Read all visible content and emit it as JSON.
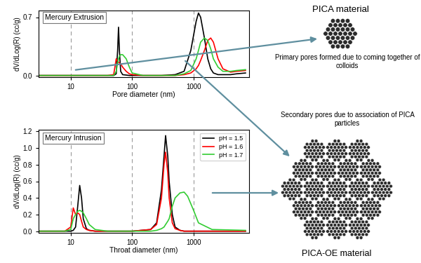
{
  "chart_data": [
    {
      "type": "line",
      "title": "Mercury Extrusion",
      "x_label": "Pore diameter (nm)",
      "y_label": "dV/dLog(R) (cc/g)",
      "log": "x",
      "grid": "x",
      "xlim": [
        3,
        8000
      ],
      "xticks": [
        10,
        100,
        1000
      ],
      "ylim": [
        -0.02,
        0.78
      ],
      "yticks": [
        {
          "value": 0,
          "label": "0.0"
        },
        0.7
      ],
      "x": [
        3,
        20,
        40,
        50,
        55,
        58,
        60,
        62,
        65,
        70,
        80,
        90,
        100,
        150,
        300,
        500,
        700,
        900,
        1100,
        1200,
        1300,
        1500,
        1700,
        1900,
        2100,
        2500,
        3000,
        4000,
        5000,
        7000
      ],
      "series": [
        {
          "name": "pH = 1.5",
          "color": "#000000",
          "values": [
            0,
            0,
            0,
            0,
            0.02,
            0.3,
            0.58,
            0.3,
            0.05,
            0.01,
            0.005,
            0,
            0,
            0,
            0,
            0.01,
            0.05,
            0.3,
            0.65,
            0.75,
            0.7,
            0.45,
            0.2,
            0.08,
            0.03,
            0.01,
            0.01,
            0.01,
            0.02,
            0.03
          ]
        },
        {
          "name": "pH = 1.6",
          "color": "#ff0000",
          "values": [
            0,
            0,
            0,
            0.01,
            0.2,
            0.17,
            0.16,
            0.15,
            0.14,
            0.1,
            0.05,
            0.02,
            0.01,
            0,
            0,
            0,
            0.01,
            0.03,
            0.08,
            0.12,
            0.18,
            0.3,
            0.42,
            0.45,
            0.4,
            0.2,
            0.08,
            0.04,
            0.05,
            0.06
          ]
        },
        {
          "name": "pH = 1.7",
          "color": "#33cc33",
          "values": [
            0,
            0,
            0,
            0,
            0.05,
            0.15,
            0.2,
            0.23,
            0.25,
            0.25,
            0.2,
            0.1,
            0.03,
            0,
            0,
            0,
            0.02,
            0.06,
            0.2,
            0.3,
            0.4,
            0.45,
            0.42,
            0.32,
            0.2,
            0.1,
            0.05,
            0.05,
            0.06,
            0.07
          ]
        }
      ]
    },
    {
      "type": "line",
      "title": "Mercury Intrusion",
      "x_label": "Throat diameter (nm)",
      "y_label": "dV/dLog(R) (cc/g)",
      "log": "x",
      "grid": "x",
      "legend": "upper right",
      "xlim": [
        3,
        8000
      ],
      "xticks": [
        10,
        100,
        1000
      ],
      "ylim": [
        -0.02,
        1.22
      ],
      "yticks": [
        {
          "value": 0,
          "label": "0.0"
        },
        0.2,
        0.4,
        0.6,
        0.8,
        {
          "value": 1,
          "label": "1.0"
        },
        1.2
      ],
      "x": [
        3,
        8,
        10,
        11,
        12,
        13,
        14,
        15,
        16,
        18,
        20,
        25,
        40,
        100,
        200,
        250,
        300,
        330,
        350,
        380,
        400,
        450,
        500,
        600,
        700,
        800,
        1000,
        1200,
        2000,
        7000
      ],
      "series": [
        {
          "name": "pH = 1.5",
          "color": "#000000",
          "values": [
            0,
            0,
            0,
            0.01,
            0.05,
            0.3,
            0.55,
            0.4,
            0.15,
            0.03,
            0.01,
            0,
            0,
            0,
            0.02,
            0.1,
            0.5,
            0.9,
            1.15,
            0.9,
            0.6,
            0.2,
            0.05,
            0.01,
            0,
            0,
            0,
            0,
            0,
            0
          ]
        },
        {
          "name": "pH = 1.6",
          "color": "#ff0000",
          "values": [
            0,
            0,
            0.05,
            0.28,
            0.2,
            0.22,
            0.2,
            0.12,
            0.05,
            0.02,
            0.01,
            0,
            0,
            0,
            0.02,
            0.08,
            0.4,
            0.8,
            0.95,
            0.7,
            0.4,
            0.1,
            0.03,
            0.01,
            0,
            0,
            0,
            0,
            0,
            0
          ]
        },
        {
          "name": "pH = 1.7",
          "color": "#33cc33",
          "values": [
            0,
            0,
            0.02,
            0.15,
            0.2,
            0.24,
            0.25,
            0.24,
            0.22,
            0.15,
            0.08,
            0.02,
            0,
            0,
            0,
            0.01,
            0.03,
            0.05,
            0.08,
            0.12,
            0.15,
            0.3,
            0.4,
            0.46,
            0.47,
            0.42,
            0.25,
            0.1,
            0.02,
            0.01
          ]
        }
      ]
    }
  ],
  "diagram": {
    "nodes": [
      {
        "label": "PICA material"
      },
      {
        "label": "Primary pores formed due to coming together of colloids"
      },
      {
        "label": "Secondary pores due to association of PICA particles"
      },
      {
        "label": "PICA-OE material"
      }
    ]
  }
}
